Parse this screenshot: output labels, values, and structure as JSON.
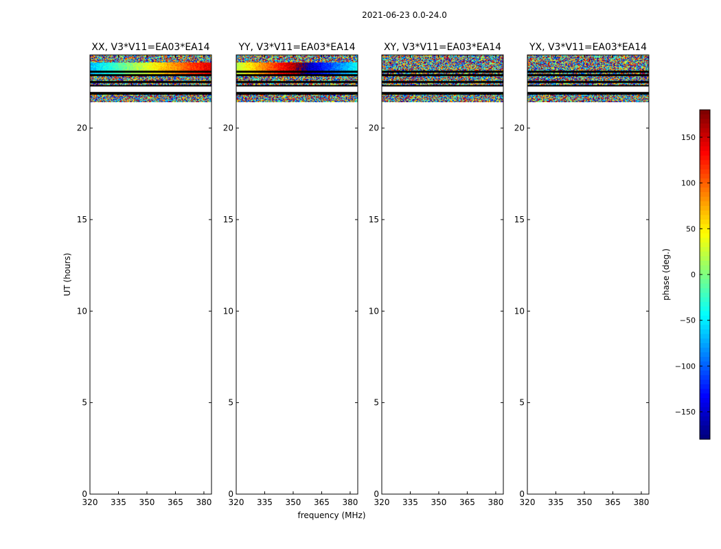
{
  "figure": {
    "title": "2021-06-23 0.0-24.0"
  },
  "chart_data": [
    {
      "type": "heatmap",
      "title": "XX, V3*V11=EA03*EA14",
      "xlabel": "frequency (MHz)",
      "ylabel": "UT (hours)",
      "xlim": [
        320,
        384
      ],
      "ylim": [
        0,
        24
      ],
      "xticks": [
        320,
        335,
        350,
        365,
        380
      ],
      "yticks": [
        0,
        5,
        10,
        15,
        20
      ],
      "data_time_range": [
        21.4,
        24.0
      ],
      "flagged_time_rows": [
        23.1,
        22.9,
        22.55,
        22.3,
        22.0,
        21.9
      ],
      "colormap": "jet",
      "notes": "coherent phase ramp near 23.0-23.5 h from about -60 deg (low freq) to +130 deg (high freq); noisy elsewhere"
    },
    {
      "type": "heatmap",
      "title": "YY, V3*V11=EA03*EA14",
      "xlabel": "frequency (MHz)",
      "ylabel": "",
      "xlim": [
        320,
        384
      ],
      "ylim": [
        0,
        24
      ],
      "xticks": [
        320,
        335,
        350,
        365,
        380
      ],
      "yticks": [
        0,
        5,
        10,
        15,
        20
      ],
      "data_time_range": [
        21.4,
        24.0
      ],
      "flagged_time_rows": [
        23.1,
        22.9,
        22.55,
        22.3,
        22.0,
        21.9
      ],
      "colormap": "jet",
      "notes": "coherent phase ramp near 23.0-23.5 h from about 20 deg to +180 deg then wrapping to -170 deg; noisy elsewhere"
    },
    {
      "type": "heatmap",
      "title": "XY, V3*V11=EA03*EA14",
      "xlabel": "",
      "ylabel": "",
      "xlim": [
        320,
        384
      ],
      "ylim": [
        0,
        24
      ],
      "xticks": [
        320,
        335,
        350,
        365,
        380
      ],
      "yticks": [
        0,
        5,
        10,
        15,
        20
      ],
      "data_time_range": [
        21.4,
        24.0
      ],
      "flagged_time_rows": [
        23.1,
        22.9,
        22.55,
        22.3,
        22.0,
        21.9
      ],
      "colormap": "jet",
      "notes": "random phase noise"
    },
    {
      "type": "heatmap",
      "title": "YX, V3*V11=EA03*EA14",
      "xlabel": "",
      "ylabel": "",
      "xlim": [
        320,
        384
      ],
      "ylim": [
        0,
        24
      ],
      "xticks": [
        320,
        335,
        350,
        365,
        380
      ],
      "yticks": [
        0,
        5,
        10,
        15,
        20
      ],
      "data_time_range": [
        21.4,
        24.0
      ],
      "flagged_time_rows": [
        23.1,
        22.9,
        22.55,
        22.3,
        22.0,
        21.9
      ],
      "colormap": "jet",
      "notes": "random phase noise"
    }
  ],
  "colorbar": {
    "label": "phase (deg.)",
    "range": [
      -180,
      180
    ],
    "ticks": [
      150,
      100,
      50,
      0,
      -50,
      -100,
      -150
    ],
    "tick_labels": [
      "150",
      "100",
      "50",
      "0",
      "−50",
      "−100",
      "−150"
    ],
    "colormap": "jet"
  }
}
